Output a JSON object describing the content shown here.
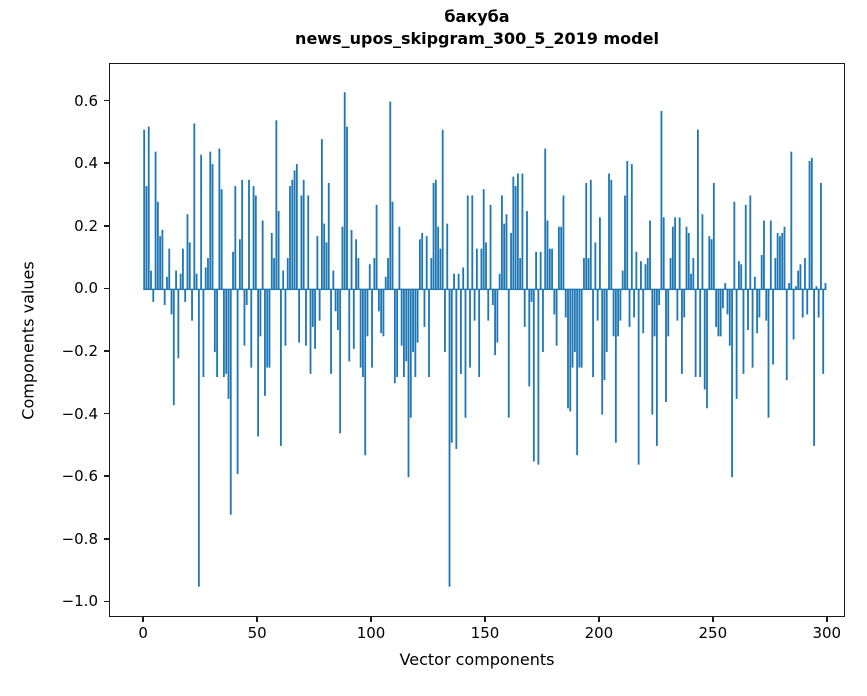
{
  "chart_data": {
    "type": "bar",
    "title_line1": "бакуба",
    "title_line2": "news_upos_skipgram_300_5_2019 model",
    "xlabel": "Vector components",
    "ylabel": "Components values",
    "bar_color": "#1f77b4",
    "background_color": "#ffffff",
    "grid": false,
    "legend": false,
    "n_components": 300,
    "x_ticks": [
      0,
      50,
      100,
      150,
      200,
      250,
      300
    ],
    "y_ticks": [
      0.6,
      0.4,
      0.2,
      0.0,
      -0.2,
      -0.4,
      -0.6,
      -0.8,
      -1.0
    ],
    "xlim": [
      -15,
      308
    ],
    "ylim": [
      -1.05,
      0.72
    ],
    "values": [
      0.51,
      0.33,
      0.52,
      0.06,
      -0.04,
      0.44,
      0.28,
      0.17,
      0.19,
      -0.05,
      0.04,
      0.13,
      -0.08,
      -0.37,
      0.06,
      -0.22,
      0.05,
      0.13,
      -0.04,
      0.24,
      0.15,
      -0.1,
      0.53,
      0.05,
      -0.95,
      0.43,
      -0.28,
      0.07,
      0.1,
      0.44,
      0.4,
      -0.2,
      -0.28,
      0.45,
      0.32,
      -0.28,
      -0.27,
      -0.35,
      -0.72,
      0.12,
      0.33,
      -0.59,
      0.16,
      0.35,
      -0.18,
      -0.05,
      0.35,
      -0.25,
      0.33,
      0.3,
      -0.47,
      -0.15,
      0.22,
      -0.34,
      -0.25,
      -0.25,
      0.18,
      0.1,
      0.54,
      0.25,
      -0.5,
      0.06,
      -0.18,
      0.1,
      0.33,
      0.35,
      0.38,
      0.4,
      -0.17,
      0.3,
      0.35,
      -0.18,
      0.3,
      -0.27,
      -0.12,
      -0.19,
      0.17,
      -0.1,
      0.48,
      0.21,
      0.15,
      0.34,
      -0.27,
      0.06,
      -0.07,
      -0.13,
      -0.46,
      0.2,
      0.63,
      0.52,
      -0.23,
      0.19,
      -0.19,
      0.16,
      0.1,
      -0.25,
      -0.28,
      -0.53,
      -0.15,
      0.08,
      -0.25,
      0.1,
      0.27,
      -0.07,
      -0.14,
      -0.15,
      0.04,
      0.1,
      0.6,
      0.28,
      -0.3,
      -0.28,
      0.2,
      -0.18,
      -0.28,
      -0.23,
      -0.6,
      -0.41,
      -0.2,
      -0.28,
      -0.17,
      0.16,
      0.18,
      -0.12,
      0.17,
      -0.28,
      0.1,
      0.34,
      0.35,
      0.2,
      0.13,
      0.51,
      -0.2,
      0.21,
      -0.95,
      -0.49,
      0.05,
      -0.51,
      0.05,
      -0.27,
      0.07,
      -0.41,
      0.3,
      -0.25,
      0.3,
      -0.1,
      0.13,
      -0.28,
      0.13,
      0.32,
      0.15,
      -0.1,
      0.27,
      -0.05,
      -0.21,
      -0.17,
      0.05,
      0.3,
      0.21,
      0.24,
      -0.41,
      0.18,
      0.36,
      0.33,
      0.37,
      0.1,
      0.37,
      -0.12,
      0.25,
      -0.31,
      -0.04,
      -0.55,
      0.12,
      -0.56,
      0.12,
      -0.2,
      0.45,
      0.22,
      0.13,
      0.13,
      -0.08,
      -0.18,
      0.2,
      0.2,
      0.3,
      -0.09,
      -0.38,
      -0.39,
      -0.25,
      -0.2,
      -0.53,
      -0.25,
      -0.25,
      0.1,
      0.34,
      0.1,
      0.35,
      -0.28,
      0.15,
      -0.1,
      0.23,
      -0.4,
      -0.29,
      -0.2,
      0.37,
      0.35,
      -0.15,
      -0.49,
      -0.15,
      -0.1,
      0.06,
      0.3,
      0.41,
      -0.12,
      0.4,
      -0.09,
      0.12,
      -0.56,
      0.09,
      -0.14,
      0.08,
      0.1,
      0.22,
      -0.4,
      -0.15,
      -0.5,
      -0.05,
      0.57,
      0.23,
      -0.36,
      -0.15,
      0.1,
      0.2,
      0.23,
      -0.1,
      0.23,
      -0.27,
      -0.09,
      0.2,
      0.18,
      0.05,
      0.1,
      -0.28,
      0.51,
      -0.28,
      0.24,
      -0.32,
      -0.38,
      0.17,
      0.16,
      0.34,
      -0.12,
      -0.15,
      -0.15,
      -0.06,
      0.02,
      -0.08,
      -0.18,
      -0.6,
      0.28,
      -0.35,
      0.09,
      0.08,
      -0.27,
      0.27,
      -0.13,
      0.3,
      -0.25,
      0.04,
      -0.14,
      -0.09,
      0.11,
      0.22,
      -0.1,
      -0.41,
      0.22,
      -0.24,
      0.1,
      0.18,
      0.17,
      0.18,
      0.2,
      -0.29,
      0.02,
      0.44,
      -0.16,
      0.01,
      0.06,
      0.08,
      -0.09,
      0.1,
      -0.08,
      0.41,
      0.42,
      -0.5,
      0.01,
      -0.09,
      0.34,
      -0.27,
      0.02
    ]
  }
}
